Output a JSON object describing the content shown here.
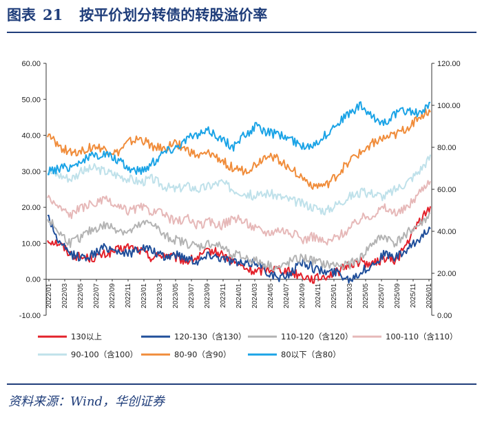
{
  "header": {
    "figure_label": "图表",
    "figure_number": "21",
    "title": "按平价划分转债的转股溢价率"
  },
  "source": "资料来源：Wind，华创证券",
  "chart_data": {
    "type": "line",
    "title": "按平价划分转债的转股溢价率",
    "x_labels": [
      "2022/01",
      "2022/03",
      "2022/05",
      "2022/07",
      "2022/09",
      "2022/11",
      "2023/01",
      "2023/03",
      "2023/05",
      "2023/07",
      "2023/09",
      "2023/11",
      "2024/01",
      "2024/03",
      "2024/05",
      "2024/07",
      "2024/09",
      "2024/11",
      "2025/01",
      "2025/03",
      "2025/05",
      "2025/07",
      "2025/09",
      "2025/11",
      "2026/01"
    ],
    "y_left": {
      "min": -10,
      "max": 60,
      "ticks": [
        "-10.00",
        "0.00",
        "10.00",
        "20.00",
        "30.00",
        "40.00",
        "50.00",
        "60.00"
      ]
    },
    "y_right": {
      "min": 0,
      "max": 120,
      "ticks": [
        "0.00",
        "20.00",
        "40.00",
        "60.00",
        "80.00",
        "100.00",
        "120.00"
      ]
    },
    "series": [
      {
        "name": "130以上",
        "axis": "left",
        "color": "#e3202a",
        "values": [
          11,
          10,
          7,
          6,
          6,
          7,
          8,
          9,
          8,
          6,
          7,
          6,
          5,
          6,
          8,
          7,
          5,
          3,
          2,
          3,
          3,
          2,
          1,
          0,
          1,
          2,
          4,
          5,
          4,
          6,
          5,
          10,
          16,
          20
        ]
      },
      {
        "name": "120-130（含130）",
        "axis": "left",
        "color": "#1f4e9a",
        "values": [
          18,
          10,
          7,
          6,
          7,
          9,
          8,
          7,
          9,
          8,
          6,
          7,
          6,
          5,
          7,
          6,
          5,
          4,
          5,
          2,
          0,
          2,
          5,
          3,
          2,
          2,
          0,
          2,
          4,
          7,
          6,
          8,
          11,
          15
        ]
      },
      {
        "name": "110-120（含120）",
        "axis": "left",
        "color": "#b3b3b3",
        "values": [
          17,
          13,
          10,
          12,
          14,
          15,
          14,
          13,
          15,
          16,
          12,
          11,
          10,
          9,
          10,
          9,
          7,
          6,
          5,
          4,
          3,
          5,
          6,
          5,
          4,
          4,
          4,
          6,
          10,
          12,
          10,
          13,
          15,
          18
        ]
      },
      {
        "name": "100-110（含110）",
        "axis": "left",
        "color": "#e6b8b8",
        "values": [
          23,
          20,
          18,
          20,
          21,
          22,
          20,
          19,
          20,
          19,
          18,
          16,
          17,
          15,
          16,
          15,
          17,
          16,
          14,
          13,
          14,
          13,
          11,
          12,
          10,
          12,
          14,
          17,
          18,
          20,
          18,
          20,
          24,
          28
        ]
      },
      {
        "name": "90-100（含100）",
        "axis": "left",
        "color": "#bfe1ea",
        "values": [
          30,
          29,
          28,
          30,
          31,
          30,
          29,
          28,
          27,
          28,
          26,
          25,
          26,
          25,
          26,
          27,
          25,
          24,
          23,
          24,
          23,
          22,
          21,
          20,
          19,
          21,
          23,
          24,
          24,
          23,
          25,
          27,
          30,
          34
        ]
      },
      {
        "name": "80-90（含90）",
        "axis": "left",
        "color": "#f08c3a",
        "values": [
          40,
          37,
          35,
          36,
          37,
          36,
          35,
          38,
          39,
          37,
          36,
          38,
          36,
          34,
          35,
          33,
          31,
          30,
          32,
          35,
          33,
          31,
          28,
          26,
          26,
          29,
          33,
          35,
          38,
          39,
          40,
          42,
          45,
          47
        ]
      },
      {
        "name": "80以下（含80）",
        "axis": "right",
        "color": "#1aa3e6",
        "values": [
          68,
          70,
          71,
          74,
          76,
          77,
          74,
          70,
          69,
          72,
          78,
          80,
          84,
          86,
          88,
          84,
          80,
          86,
          90,
          87,
          86,
          84,
          80,
          82,
          86,
          92,
          96,
          100,
          94,
          92,
          96,
          98,
          96,
          100
        ]
      }
    ],
    "legend_position": "bottom"
  }
}
